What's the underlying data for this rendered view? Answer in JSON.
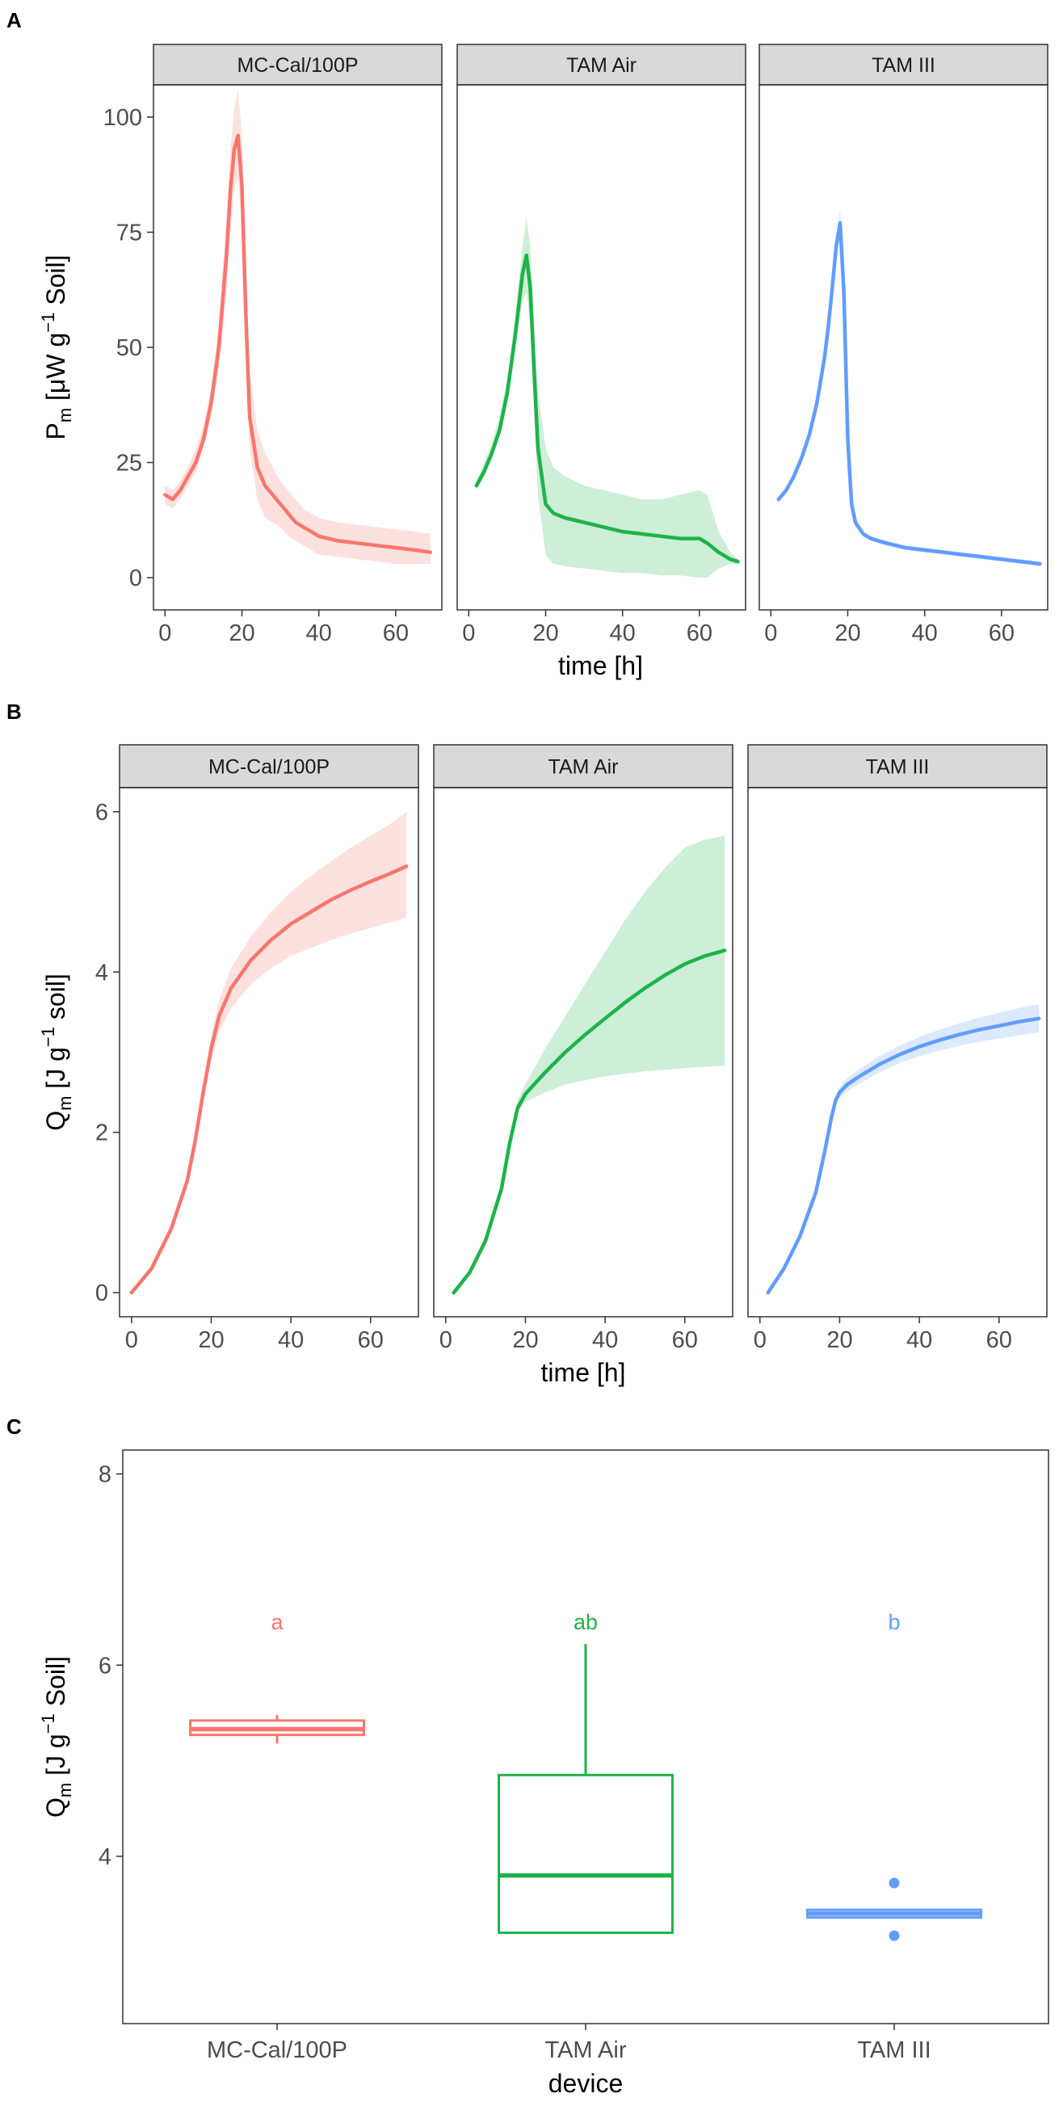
{
  "colors": {
    "MC-Cal/100P": "#F8766D",
    "TAM Air": "#1DB34A",
    "TAM III": "#619CFF",
    "strip_fill": "#D9D9D9",
    "grid": "none"
  },
  "chart_data": [
    {
      "id": "A",
      "type": "line",
      "panel_label": "A",
      "facets": [
        "MC-Cal/100P",
        "TAM Air",
        "TAM III"
      ],
      "xlabel": "time [h]",
      "ylabel": {
        "main": "P",
        "sub": "m",
        "rest1": " [μW g",
        "sup": "−1",
        "rest2": " Soil]"
      },
      "xlim": [
        -3,
        72
      ],
      "ylim": [
        -7,
        107
      ],
      "xticks": [
        0,
        20,
        40,
        60
      ],
      "xtick_labels": [
        "0",
        "20",
        "40",
        "60"
      ],
      "yticks": [
        0,
        25,
        50,
        75,
        100
      ],
      "ytick_labels": [
        "0",
        "25",
        "50",
        "75",
        "100"
      ],
      "series": [
        {
          "name": "MC-Cal/100P",
          "x": [
            0,
            2,
            4,
            6,
            8,
            10,
            12,
            14,
            16,
            17,
            18,
            19,
            20,
            21,
            22,
            24,
            26,
            28,
            30,
            32,
            34,
            36,
            38,
            40,
            45,
            50,
            55,
            60,
            65,
            69
          ],
          "y": [
            18,
            17,
            19,
            22,
            25,
            30,
            38,
            50,
            70,
            84,
            93,
            96,
            85,
            58,
            35,
            24,
            20,
            18,
            16,
            14,
            12,
            11,
            10,
            9,
            8,
            7.5,
            7,
            6.5,
            6,
            5.5
          ],
          "lo": [
            16,
            15,
            17,
            20,
            23,
            28,
            35,
            45,
            62,
            75,
            84,
            87,
            76,
            48,
            28,
            17,
            13,
            12,
            11,
            9,
            8,
            7,
            6,
            5,
            4.5,
            4,
            3.5,
            3,
            3,
            3
          ],
          "hi": [
            20,
            19,
            21,
            24,
            28,
            33,
            41,
            55,
            78,
            93,
            102,
            106,
            96,
            70,
            45,
            32,
            27,
            24,
            21,
            19,
            17,
            15,
            14,
            13,
            12,
            11.5,
            11,
            10.5,
            10,
            9.5
          ]
        },
        {
          "name": "TAM Air",
          "x": [
            2,
            4,
            6,
            8,
            10,
            12,
            14,
            15,
            16,
            17,
            18,
            20,
            22,
            25,
            30,
            35,
            40,
            45,
            50,
            55,
            60,
            62,
            65,
            68,
            70
          ],
          "y": [
            20,
            23,
            27,
            32,
            40,
            52,
            66,
            70,
            63,
            45,
            28,
            16,
            14,
            13,
            12,
            11,
            10,
            9.5,
            9,
            8.5,
            8.5,
            7.5,
            5.5,
            4,
            3.5
          ],
          "lo": [
            19,
            22,
            26,
            31,
            38,
            49,
            60,
            62,
            55,
            36,
            18,
            5,
            3,
            2.5,
            2,
            1.5,
            1,
            1,
            0.5,
            0.5,
            0,
            0,
            2,
            3,
            3
          ],
          "hi": [
            21,
            25,
            29,
            35,
            43,
            56,
            72,
            78,
            72,
            55,
            40,
            28,
            24,
            22,
            20,
            19,
            18,
            17,
            17,
            18,
            19,
            18,
            10,
            5.5,
            4
          ]
        },
        {
          "name": "TAM III",
          "x": [
            2,
            4,
            6,
            8,
            10,
            12,
            14,
            15,
            16,
            17,
            18,
            19,
            20,
            21,
            22,
            24,
            26,
            30,
            35,
            40,
            45,
            50,
            55,
            60,
            65,
            70
          ],
          "y": [
            17,
            19,
            22,
            26,
            31,
            38,
            48,
            55,
            63,
            72,
            77,
            62,
            30,
            16,
            12,
            9.5,
            8.5,
            7.5,
            6.5,
            6,
            5.5,
            5,
            4.5,
            4,
            3.5,
            3
          ],
          "lo": [
            16.5,
            18.5,
            21.5,
            25,
            30,
            37,
            46.5,
            53.5,
            61,
            70,
            74,
            59,
            28,
            15,
            11,
            9,
            8,
            7,
            6,
            5.5,
            5,
            4.5,
            4,
            3.5,
            3,
            2.5
          ],
          "hi": [
            17.5,
            19.5,
            22.5,
            27,
            32,
            39,
            49.5,
            56.5,
            65,
            74,
            80,
            65,
            32,
            17,
            13,
            10,
            9,
            8,
            7,
            6.5,
            6,
            5.5,
            5,
            4.5,
            4,
            3.5
          ]
        }
      ]
    },
    {
      "id": "B",
      "type": "line",
      "panel_label": "B",
      "facets": [
        "MC-Cal/100P",
        "TAM Air",
        "TAM III"
      ],
      "xlabel": "time [h]",
      "ylabel": {
        "main": "Q",
        "sub": "m",
        "rest1": " [J g",
        "sup": "−1",
        "rest2": " soil]"
      },
      "xlim": [
        -3,
        72
      ],
      "ylim": [
        -0.3,
        6.3
      ],
      "xticks": [
        0,
        20,
        40,
        60
      ],
      "xtick_labels": [
        "0",
        "20",
        "40",
        "60"
      ],
      "yticks": [
        0,
        2,
        4,
        6
      ],
      "ytick_labels": [
        "0",
        "2",
        "4",
        "6"
      ],
      "series": [
        {
          "name": "MC-Cal/100P",
          "x": [
            0,
            5,
            10,
            14,
            16,
            18,
            20,
            22,
            25,
            30,
            35,
            40,
            45,
            50,
            55,
            60,
            65,
            69
          ],
          "y": [
            0,
            0.3,
            0.8,
            1.4,
            1.9,
            2.5,
            3.05,
            3.45,
            3.8,
            4.15,
            4.4,
            4.6,
            4.75,
            4.9,
            5.02,
            5.13,
            5.23,
            5.32
          ],
          "lo": [
            0,
            0.28,
            0.76,
            1.33,
            1.8,
            2.38,
            2.9,
            3.25,
            3.55,
            3.85,
            4.05,
            4.2,
            4.3,
            4.4,
            4.48,
            4.55,
            4.62,
            4.68
          ],
          "hi": [
            0,
            0.32,
            0.84,
            1.47,
            2.0,
            2.62,
            3.2,
            3.65,
            4.05,
            4.45,
            4.75,
            5.0,
            5.2,
            5.38,
            5.55,
            5.7,
            5.85,
            6.0
          ]
        },
        {
          "name": "TAM Air",
          "x": [
            2,
            6,
            10,
            14,
            16,
            18,
            20,
            25,
            30,
            35,
            40,
            45,
            50,
            55,
            60,
            65,
            70
          ],
          "y": [
            0,
            0.25,
            0.65,
            1.3,
            1.85,
            2.3,
            2.48,
            2.75,
            3.0,
            3.22,
            3.42,
            3.62,
            3.8,
            3.96,
            4.1,
            4.2,
            4.27
          ],
          "lo": [
            0,
            0.24,
            0.62,
            1.25,
            1.8,
            2.25,
            2.38,
            2.5,
            2.6,
            2.65,
            2.7,
            2.73,
            2.76,
            2.78,
            2.8,
            2.82,
            2.83
          ],
          "hi": [
            0,
            0.26,
            0.68,
            1.35,
            1.9,
            2.4,
            2.6,
            3.05,
            3.45,
            3.85,
            4.25,
            4.65,
            5.0,
            5.3,
            5.55,
            5.65,
            5.7
          ]
        },
        {
          "name": "TAM III",
          "x": [
            2,
            6,
            10,
            14,
            16,
            18,
            19,
            20,
            22,
            25,
            30,
            35,
            40,
            45,
            50,
            55,
            60,
            65,
            70
          ],
          "y": [
            0,
            0.3,
            0.7,
            1.25,
            1.7,
            2.2,
            2.4,
            2.5,
            2.6,
            2.7,
            2.85,
            2.97,
            3.07,
            3.15,
            3.22,
            3.28,
            3.33,
            3.38,
            3.42
          ],
          "lo": [
            0,
            0.29,
            0.68,
            1.22,
            1.66,
            2.15,
            2.34,
            2.43,
            2.52,
            2.61,
            2.75,
            2.86,
            2.95,
            3.02,
            3.08,
            3.13,
            3.17,
            3.21,
            3.25
          ],
          "hi": [
            0,
            0.31,
            0.72,
            1.28,
            1.74,
            2.25,
            2.46,
            2.57,
            2.68,
            2.79,
            2.95,
            3.08,
            3.19,
            3.28,
            3.36,
            3.43,
            3.49,
            3.55,
            3.6
          ]
        }
      ]
    },
    {
      "id": "C",
      "type": "box",
      "panel_label": "C",
      "xlabel": "device",
      "ylabel": {
        "main": "Q",
        "sub": "m",
        "rest1": " [J g",
        "sup": "−1",
        "rest2": " Soil]"
      },
      "ylim": [
        2.25,
        8.25
      ],
      "yticks": [
        4,
        6,
        8
      ],
      "ytick_labels": [
        "4",
        "6",
        "8"
      ],
      "categories": [
        "MC-Cal/100P",
        "TAM Air",
        "TAM III"
      ],
      "boxes": [
        {
          "name": "MC-Cal/100P",
          "q1": 5.27,
          "median": 5.33,
          "q3": 5.42,
          "whisker_low": 5.18,
          "whisker_high": 5.48,
          "outliers": [],
          "letter": "a"
        },
        {
          "name": "TAM Air",
          "q1": 3.2,
          "median": 3.8,
          "q3": 4.85,
          "whisker_low": 3.2,
          "whisker_high": 6.22,
          "outliers": [],
          "letter": "ab"
        },
        {
          "name": "TAM III",
          "q1": 3.36,
          "median": 3.4,
          "q3": 3.44,
          "whisker_low": 3.36,
          "whisker_high": 3.44,
          "outliers": [
            3.72,
            3.17
          ],
          "letter": "b"
        }
      ],
      "letter_y": 6.45
    }
  ]
}
